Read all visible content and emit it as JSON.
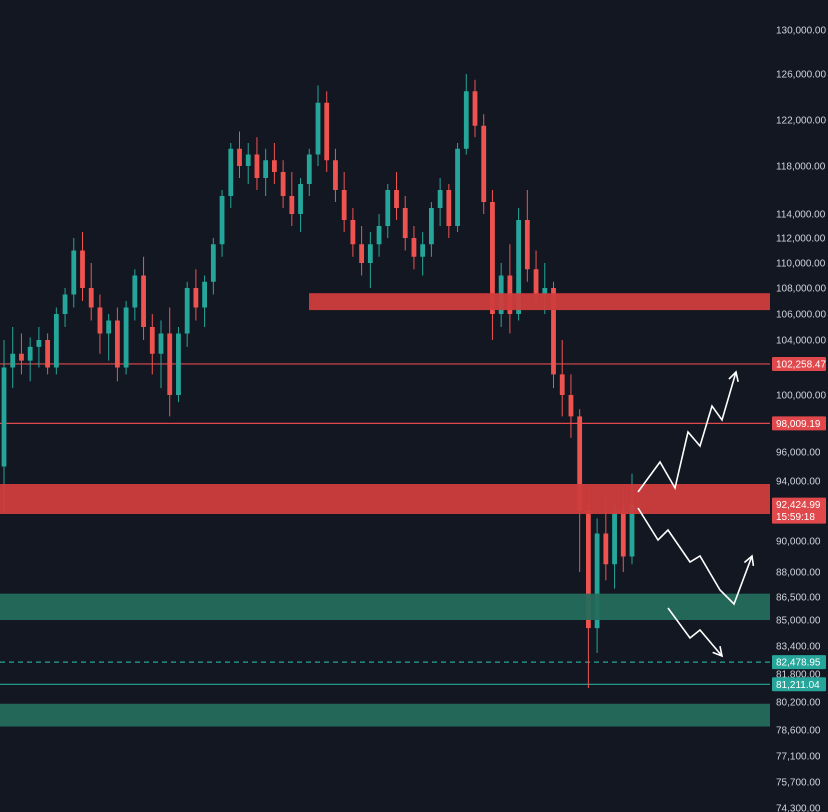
{
  "chart_data": {
    "type": "candlestick",
    "ylim": [
      74300,
      131300
    ],
    "y_ticks": [
      "130,000.00",
      "126,000.00",
      "122,000.00",
      "118,000.00",
      "114,000.00",
      "112,000.00",
      "110,000.00",
      "108,000.00",
      "106,000.00",
      "104,000.00",
      "100,000.00",
      "96,000.00",
      "94,000.00",
      "90,000.00",
      "88,000.00",
      "86,500.00",
      "85,000.00",
      "83,400.00",
      "81,800.00",
      "80,200.00",
      "78,600.00",
      "77,100.00",
      "75,700.00",
      "74,300.00"
    ],
    "y_tick_values": [
      130000,
      126000,
      122000,
      118000,
      114000,
      112000,
      110000,
      108000,
      106000,
      104000,
      100000,
      96000,
      94000,
      90000,
      88000,
      86500,
      85000,
      83400,
      81800,
      80200,
      78600,
      77100,
      75700,
      74300
    ],
    "candle_style": {
      "up_color": "#26a69a",
      "down_color": "#ef5350"
    },
    "candles": [
      [
        95000,
        104000,
        92000,
        102000
      ],
      [
        102000,
        105000,
        100500,
        103000
      ],
      [
        103000,
        104500,
        101500,
        102500
      ],
      [
        102500,
        104200,
        101000,
        103500
      ],
      [
        103500,
        105000,
        102000,
        104000
      ],
      [
        104000,
        104500,
        101500,
        102000
      ],
      [
        102000,
        106500,
        101500,
        106000
      ],
      [
        106000,
        108000,
        105000,
        107500
      ],
      [
        107500,
        112000,
        106500,
        111000
      ],
      [
        111000,
        112500,
        107000,
        108000
      ],
      [
        108000,
        110000,
        105500,
        106500
      ],
      [
        106500,
        107500,
        103000,
        104500
      ],
      [
        104500,
        106000,
        102500,
        105500
      ],
      [
        105500,
        106500,
        101000,
        102000
      ],
      [
        102000,
        107000,
        101500,
        106500
      ],
      [
        106500,
        109500,
        105500,
        109000
      ],
      [
        109000,
        110500,
        104000,
        105000
      ],
      [
        105000,
        106000,
        101500,
        103000
      ],
      [
        103000,
        105500,
        100500,
        104500
      ],
      [
        104500,
        106500,
        98500,
        100000
      ],
      [
        100000,
        105000,
        99500,
        104500
      ],
      [
        104500,
        108500,
        103500,
        108000
      ],
      [
        108000,
        109500,
        105500,
        106500
      ],
      [
        106500,
        109000,
        105000,
        108500
      ],
      [
        108500,
        112000,
        107500,
        111500
      ],
      [
        111500,
        116000,
        110500,
        115500
      ],
      [
        115500,
        120000,
        114500,
        119500
      ],
      [
        119500,
        121000,
        117000,
        118000
      ],
      [
        118000,
        120000,
        116500,
        119000
      ],
      [
        119000,
        120500,
        116000,
        117000
      ],
      [
        117000,
        119500,
        115500,
        118500
      ],
      [
        118500,
        120000,
        116500,
        117500
      ],
      [
        117500,
        118500,
        114500,
        115500
      ],
      [
        115500,
        117500,
        113000,
        114000
      ],
      [
        114000,
        117000,
        112500,
        116500
      ],
      [
        116500,
        119500,
        115500,
        119000
      ],
      [
        119000,
        125000,
        118000,
        123500
      ],
      [
        123500,
        124500,
        117500,
        118500
      ],
      [
        118500,
        119500,
        115000,
        116000
      ],
      [
        116000,
        117500,
        112500,
        113500
      ],
      [
        113500,
        114500,
        110500,
        111500
      ],
      [
        111500,
        113000,
        109000,
        110000
      ],
      [
        110000,
        112500,
        108000,
        111500
      ],
      [
        111500,
        114000,
        110500,
        113000
      ],
      [
        113000,
        116500,
        112000,
        116000
      ],
      [
        116000,
        117500,
        113500,
        114500
      ],
      [
        114500,
        115500,
        111000,
        112000
      ],
      [
        112000,
        113000,
        109500,
        110500
      ],
      [
        110500,
        112500,
        109000,
        111500
      ],
      [
        111500,
        115000,
        110500,
        114500
      ],
      [
        114500,
        117000,
        113000,
        116000
      ],
      [
        116000,
        116500,
        112000,
        113000
      ],
      [
        113000,
        120000,
        112500,
        119500
      ],
      [
        119500,
        126000,
        119000,
        124500
      ],
      [
        124500,
        125500,
        120500,
        121500
      ],
      [
        121500,
        122500,
        114000,
        115000
      ],
      [
        115000,
        116000,
        104000,
        106000
      ],
      [
        106000,
        110000,
        105000,
        109000
      ],
      [
        109000,
        111500,
        104500,
        106000
      ],
      [
        106000,
        114500,
        105500,
        113500
      ],
      [
        113500,
        116000,
        108500,
        109500
      ],
      [
        109500,
        111000,
        106500,
        107500
      ],
      [
        107500,
        110000,
        106000,
        108000
      ],
      [
        108000,
        108500,
        100500,
        101500
      ],
      [
        101500,
        104000,
        98500,
        100000
      ],
      [
        100000,
        101500,
        97000,
        98500
      ],
      [
        98500,
        99000,
        88000,
        92000
      ],
      [
        92000,
        93500,
        81000,
        84500
      ],
      [
        84500,
        91500,
        83000,
        90500
      ],
      [
        90500,
        93000,
        87500,
        88500
      ],
      [
        88500,
        92500,
        87000,
        92000
      ],
      [
        92000,
        93500,
        88000,
        89000
      ],
      [
        89000,
        94500,
        88500,
        92500
      ]
    ],
    "zones": [
      {
        "low": 106300,
        "high": 107600,
        "color": "#cf3c3c"
      },
      {
        "low": 91800,
        "high": 93800,
        "color": "#cf3c3c"
      },
      {
        "low": 85000,
        "high": 86700,
        "color": "#246b5c"
      },
      {
        "low": 78800,
        "high": 80100,
        "color": "#246b5c"
      }
    ],
    "levels": [
      {
        "value": 102258.47,
        "label": "102,258.47",
        "color": "#e0484c",
        "style": "solid",
        "tag_bg": "#e0484c"
      },
      {
        "value": 98009.19,
        "label": "98,009.19",
        "color": "#e0484c",
        "style": "solid",
        "tag_bg": "#e0484c"
      },
      {
        "value": 82478.95,
        "label": "82,478.95",
        "color": "#26a69a",
        "style": "dashed",
        "tag_bg": "#26a69a"
      },
      {
        "value": 81211.04,
        "label": "81,211.04",
        "color": "#26a69a",
        "style": "solid",
        "tag_bg": "#26a69a"
      }
    ],
    "price_tag": {
      "value": 92424.99,
      "label": "92,424.99",
      "timer": "15:59:18",
      "bg": "#e0484c"
    },
    "projection_paths": [
      [
        [
          638,
          492
        ],
        [
          660,
          462
        ],
        [
          675,
          488
        ],
        [
          688,
          432
        ],
        [
          700,
          446
        ],
        [
          712,
          406
        ],
        [
          722,
          420
        ],
        [
          736,
          372
        ]
      ],
      [
        [
          638,
          508
        ],
        [
          658,
          540
        ],
        [
          668,
          530
        ],
        [
          690,
          562
        ],
        [
          700,
          556
        ],
        [
          720,
          590
        ],
        [
          734,
          604
        ],
        [
          752,
          556
        ]
      ],
      [
        [
          668,
          608
        ],
        [
          690,
          638
        ],
        [
          700,
          630
        ],
        [
          722,
          656
        ]
      ]
    ],
    "projection_color": "#ffffff"
  }
}
